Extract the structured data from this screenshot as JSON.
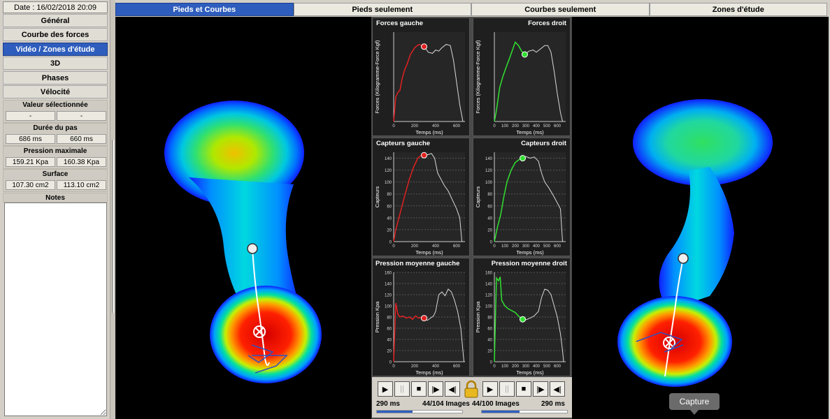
{
  "date": "Date : 16/02/2018 20:09",
  "nav": [
    "Général",
    "Courbe des forces",
    "Vidéo / Zones d'étude",
    "3D",
    "Phases",
    "Vélocité"
  ],
  "groups": [
    {
      "title": "Valeur sélectionnée",
      "left": "-",
      "right": "-"
    },
    {
      "title": "Durée du pas",
      "left": "686 ms",
      "right": "660 ms"
    },
    {
      "title": "Pression maximale",
      "left": "159.21 Kpa",
      "right": "160.38 Kpa"
    },
    {
      "title": "Surface",
      "left": "107.30 cm2",
      "right": "113.10 cm2"
    }
  ],
  "notes_title": "Notes",
  "tabs": [
    "Pieds et Courbes",
    "Pieds seulement",
    "Courbes seulement",
    "Zones d'étude"
  ],
  "panels": [
    {
      "title": "Forces gauche",
      "ylabel": "Forces (Kilogramme-Force Kgf)",
      "xlabel": "Temps (ms)"
    },
    {
      "title": "Forces droit",
      "ylabel": "Forces (Kilogramme-Force Kgf)",
      "xlabel": "Temps (ms)"
    },
    {
      "title": "Capteurs gauche",
      "ylabel": "Capteurs",
      "xlabel": "Temps (ms)"
    },
    {
      "title": "Capteurs droit",
      "ylabel": "Capteurs",
      "xlabel": "Temps (ms)"
    },
    {
      "title": "Pression moyenne gauche",
      "ylabel": "Pression Kpa",
      "xlabel": "Temps (ms)"
    },
    {
      "title": "Pression moyenne droit",
      "ylabel": "Pression Kpa",
      "xlabel": "Temps (ms)"
    }
  ],
  "controls": {
    "left_time": "290 ms",
    "left_images": "44/104 Images",
    "right_images": "44/100 Images",
    "right_time": "290 ms",
    "left_progress": 0.42,
    "right_progress": 0.44
  },
  "capture_label": "Capture",
  "colors": {
    "left_curve": "#e02020",
    "right_curve": "#30e030",
    "accent": "#2e5dbd"
  },
  "chart_data": [
    {
      "type": "line",
      "title": "Forces gauche",
      "xlabel": "Temps (ms)",
      "ylabel": "Forces (Kilogramme-Force Kgf)",
      "xlim": [
        0,
        680
      ],
      "x_ticks": [
        0,
        200,
        400,
        600
      ],
      "y_ticks": [],
      "marker": [
        290,
        67
      ],
      "series": [
        {
          "values": [
            [
              0,
              0
            ],
            [
              20,
              22
            ],
            [
              40,
              26
            ],
            [
              60,
              28
            ],
            [
              80,
              38
            ],
            [
              100,
              45
            ],
            [
              130,
              52
            ],
            [
              160,
              60
            ],
            [
              200,
              66
            ],
            [
              240,
              69
            ],
            [
              290,
              67
            ],
            [
              330,
              62
            ],
            [
              370,
              61
            ],
            [
              400,
              64
            ],
            [
              430,
              63
            ],
            [
              460,
              66
            ],
            [
              500,
              69
            ],
            [
              540,
              68
            ],
            [
              570,
              55
            ],
            [
              600,
              35
            ],
            [
              630,
              15
            ],
            [
              650,
              5
            ],
            [
              660,
              0
            ]
          ]
        }
      ]
    },
    {
      "type": "line",
      "title": "Forces droit",
      "xlabel": "Temps (ms)",
      "ylabel": "Forces (Kilogramme-Force Kgf)",
      "xlim": [
        0,
        680
      ],
      "x_ticks": [
        0,
        100,
        200,
        300,
        400,
        500,
        600
      ],
      "y_ticks": [],
      "marker": [
        290,
        60
      ],
      "series": [
        {
          "values": [
            [
              0,
              0
            ],
            [
              20,
              10
            ],
            [
              50,
              30
            ],
            [
              80,
              40
            ],
            [
              110,
              48
            ],
            [
              150,
              58
            ],
            [
              180,
              66
            ],
            [
              200,
              71
            ],
            [
              230,
              68
            ],
            [
              260,
              63
            ],
            [
              290,
              60
            ],
            [
              330,
              63
            ],
            [
              370,
              64
            ],
            [
              400,
              62
            ],
            [
              440,
              65
            ],
            [
              480,
              68
            ],
            [
              510,
              68
            ],
            [
              540,
              62
            ],
            [
              570,
              45
            ],
            [
              600,
              25
            ],
            [
              630,
              8
            ],
            [
              650,
              0
            ]
          ]
        }
      ]
    },
    {
      "type": "line",
      "title": "Capteurs gauche",
      "xlabel": "Temps (ms)",
      "ylabel": "Capteurs",
      "xlim": [
        0,
        680
      ],
      "ylim": [
        0,
        150
      ],
      "x_ticks": [
        0,
        200,
        400,
        600
      ],
      "y_ticks": [
        0,
        20,
        40,
        60,
        80,
        100,
        120,
        140
      ],
      "marker": [
        290,
        145
      ],
      "series": [
        {
          "values": [
            [
              0,
              0
            ],
            [
              20,
              20
            ],
            [
              50,
              40
            ],
            [
              80,
              60
            ],
            [
              110,
              80
            ],
            [
              150,
              105
            ],
            [
              190,
              125
            ],
            [
              230,
              140
            ],
            [
              270,
              146
            ],
            [
              290,
              145
            ],
            [
              330,
              146
            ],
            [
              360,
              148
            ],
            [
              390,
              140
            ],
            [
              420,
              115
            ],
            [
              450,
              105
            ],
            [
              480,
              95
            ],
            [
              520,
              85
            ],
            [
              560,
              70
            ],
            [
              600,
              55
            ],
            [
              630,
              40
            ],
            [
              650,
              0
            ]
          ]
        }
      ]
    },
    {
      "type": "line",
      "title": "Capteurs droit",
      "xlabel": "Temps (ms)",
      "ylabel": "Capteurs",
      "xlim": [
        0,
        680
      ],
      "ylim": [
        0,
        150
      ],
      "x_ticks": [
        0,
        100,
        200,
        300,
        400,
        500,
        600
      ],
      "y_ticks": [
        0,
        20,
        40,
        60,
        80,
        100,
        120,
        140
      ],
      "marker": [
        270,
        140
      ],
      "series": [
        {
          "values": [
            [
              0,
              0
            ],
            [
              30,
              25
            ],
            [
              60,
              45
            ],
            [
              90,
              75
            ],
            [
              120,
              100
            ],
            [
              160,
              120
            ],
            [
              200,
              133
            ],
            [
              240,
              138
            ],
            [
              270,
              140
            ],
            [
              300,
              143
            ],
            [
              340,
              140
            ],
            [
              380,
              142
            ],
            [
              420,
              135
            ],
            [
              450,
              115
            ],
            [
              480,
              100
            ],
            [
              520,
              90
            ],
            [
              560,
              78
            ],
            [
              600,
              65
            ],
            [
              630,
              55
            ],
            [
              650,
              0
            ]
          ]
        }
      ]
    },
    {
      "type": "line",
      "title": "Pression moyenne gauche",
      "xlabel": "Temps (ms)",
      "ylabel": "Pression Kpa",
      "xlim": [
        0,
        680
      ],
      "ylim": [
        0,
        160
      ],
      "x_ticks": [
        0,
        200,
        400,
        600
      ],
      "y_ticks": [
        0,
        20,
        40,
        60,
        80,
        100,
        120,
        140,
        160
      ],
      "marker": [
        290,
        78
      ],
      "series": [
        {
          "values": [
            [
              0,
              0
            ],
            [
              20,
              105
            ],
            [
              40,
              85
            ],
            [
              60,
              80
            ],
            [
              90,
              82
            ],
            [
              120,
              78
            ],
            [
              150,
              80
            ],
            [
              180,
              76
            ],
            [
              210,
              82
            ],
            [
              240,
              78
            ],
            [
              270,
              80
            ],
            [
              290,
              78
            ],
            [
              320,
              74
            ],
            [
              350,
              78
            ],
            [
              380,
              82
            ],
            [
              400,
              90
            ],
            [
              430,
              120
            ],
            [
              460,
              125
            ],
            [
              490,
              118
            ],
            [
              520,
              130
            ],
            [
              550,
              125
            ],
            [
              580,
              110
            ],
            [
              610,
              90
            ],
            [
              640,
              60
            ],
            [
              660,
              20
            ],
            [
              670,
              0
            ]
          ]
        }
      ]
    },
    {
      "type": "line",
      "title": "Pression moyenne droit",
      "xlabel": "Temps (ms)",
      "ylabel": "Pression Kpa",
      "xlim": [
        0,
        680
      ],
      "ylim": [
        0,
        160
      ],
      "x_ticks": [
        0,
        100,
        200,
        300,
        400,
        500,
        600
      ],
      "y_ticks": [
        0,
        20,
        40,
        60,
        80,
        100,
        120,
        140,
        160
      ],
      "marker": [
        270,
        76
      ],
      "series": [
        {
          "values": [
            [
              0,
              0
            ],
            [
              20,
              150
            ],
            [
              40,
              145
            ],
            [
              55,
              152
            ],
            [
              70,
              110
            ],
            [
              100,
              100
            ],
            [
              130,
              95
            ],
            [
              160,
              92
            ],
            [
              200,
              88
            ],
            [
              240,
              80
            ],
            [
              270,
              76
            ],
            [
              300,
              75
            ],
            [
              340,
              78
            ],
            [
              380,
              82
            ],
            [
              420,
              90
            ],
            [
              450,
              115
            ],
            [
              480,
              130
            ],
            [
              510,
              128
            ],
            [
              540,
              120
            ],
            [
              570,
              100
            ],
            [
              600,
              80
            ],
            [
              630,
              50
            ],
            [
              650,
              20
            ],
            [
              660,
              0
            ]
          ]
        }
      ]
    }
  ]
}
